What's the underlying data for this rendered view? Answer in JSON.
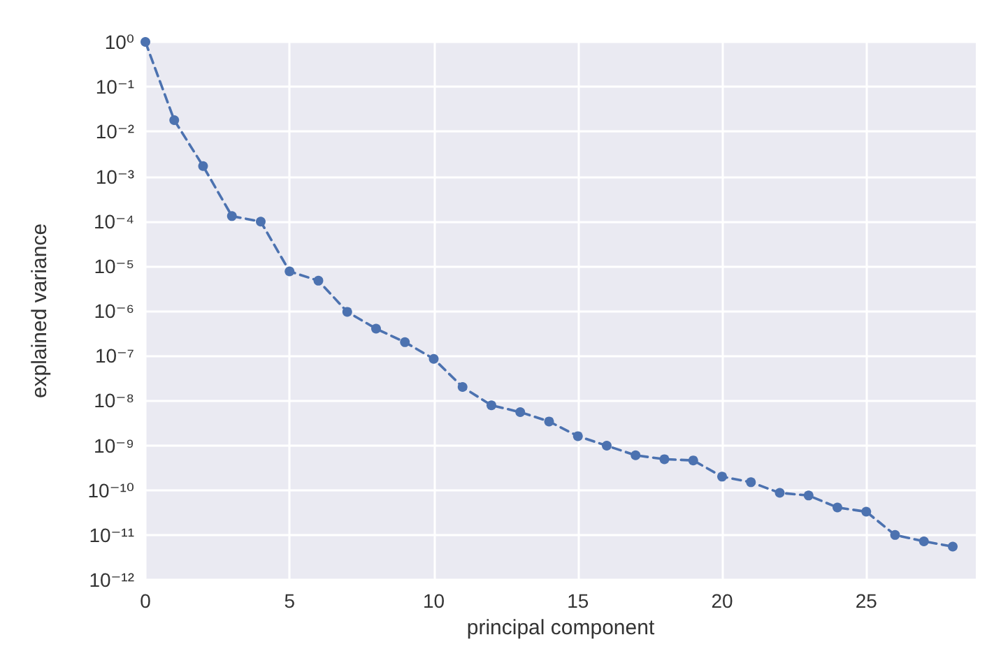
{
  "chart_data": {
    "type": "line",
    "xlabel": "principal component",
    "ylabel": "explained variance",
    "log": "y",
    "grid": true,
    "marker": "circle",
    "line_style": "dashed",
    "x": [
      0,
      1,
      2,
      3,
      4,
      5,
      6,
      7,
      8,
      9,
      10,
      11,
      12,
      13,
      14,
      15,
      16,
      17,
      18,
      19,
      20,
      21,
      22,
      23,
      24,
      25,
      26,
      27,
      28
    ],
    "series": [
      {
        "color": "#4c72b0",
        "values": [
          1,
          0.018,
          0.0017,
          0.00013,
          9.8e-05,
          7.6e-06,
          4.7e-06,
          9.5e-07,
          4e-07,
          2e-07,
          8.5e-08,
          2e-08,
          7.8e-09,
          5.5e-09,
          3.4e-09,
          1.6e-09,
          9.8e-10,
          6e-10,
          4.9e-10,
          4.6e-10,
          2e-10,
          1.5e-10,
          8.7e-11,
          7.6e-11,
          4.1e-11,
          3.3e-11,
          1e-11,
          7.2e-12,
          5.5e-12
        ]
      }
    ],
    "xlim": [
      0,
      28.8
    ],
    "xticks": [
      0,
      5,
      10,
      15,
      20,
      25
    ],
    "ylim": [
      1e-12,
      1
    ],
    "yticks": [
      {
        "value": 1,
        "label": "10⁰"
      },
      {
        "value": 0.1,
        "label": "10⁻¹"
      },
      {
        "value": 0.01,
        "label": "10⁻²"
      },
      {
        "value": 0.001,
        "label": "10⁻³"
      },
      {
        "value": 0.0001,
        "label": "10⁻⁴"
      },
      {
        "value": 1e-05,
        "label": "10⁻⁵"
      },
      {
        "value": 1e-06,
        "label": "10⁻⁶"
      },
      {
        "value": 1e-07,
        "label": "10⁻⁷"
      },
      {
        "value": 1e-08,
        "label": "10⁻⁸"
      },
      {
        "value": 1e-09,
        "label": "10⁻⁹"
      },
      {
        "value": 1e-10,
        "label": "10⁻¹⁰"
      },
      {
        "value": 1e-11,
        "label": "10⁻¹¹"
      },
      {
        "value": 1e-12,
        "label": "10⁻¹²"
      }
    ]
  }
}
